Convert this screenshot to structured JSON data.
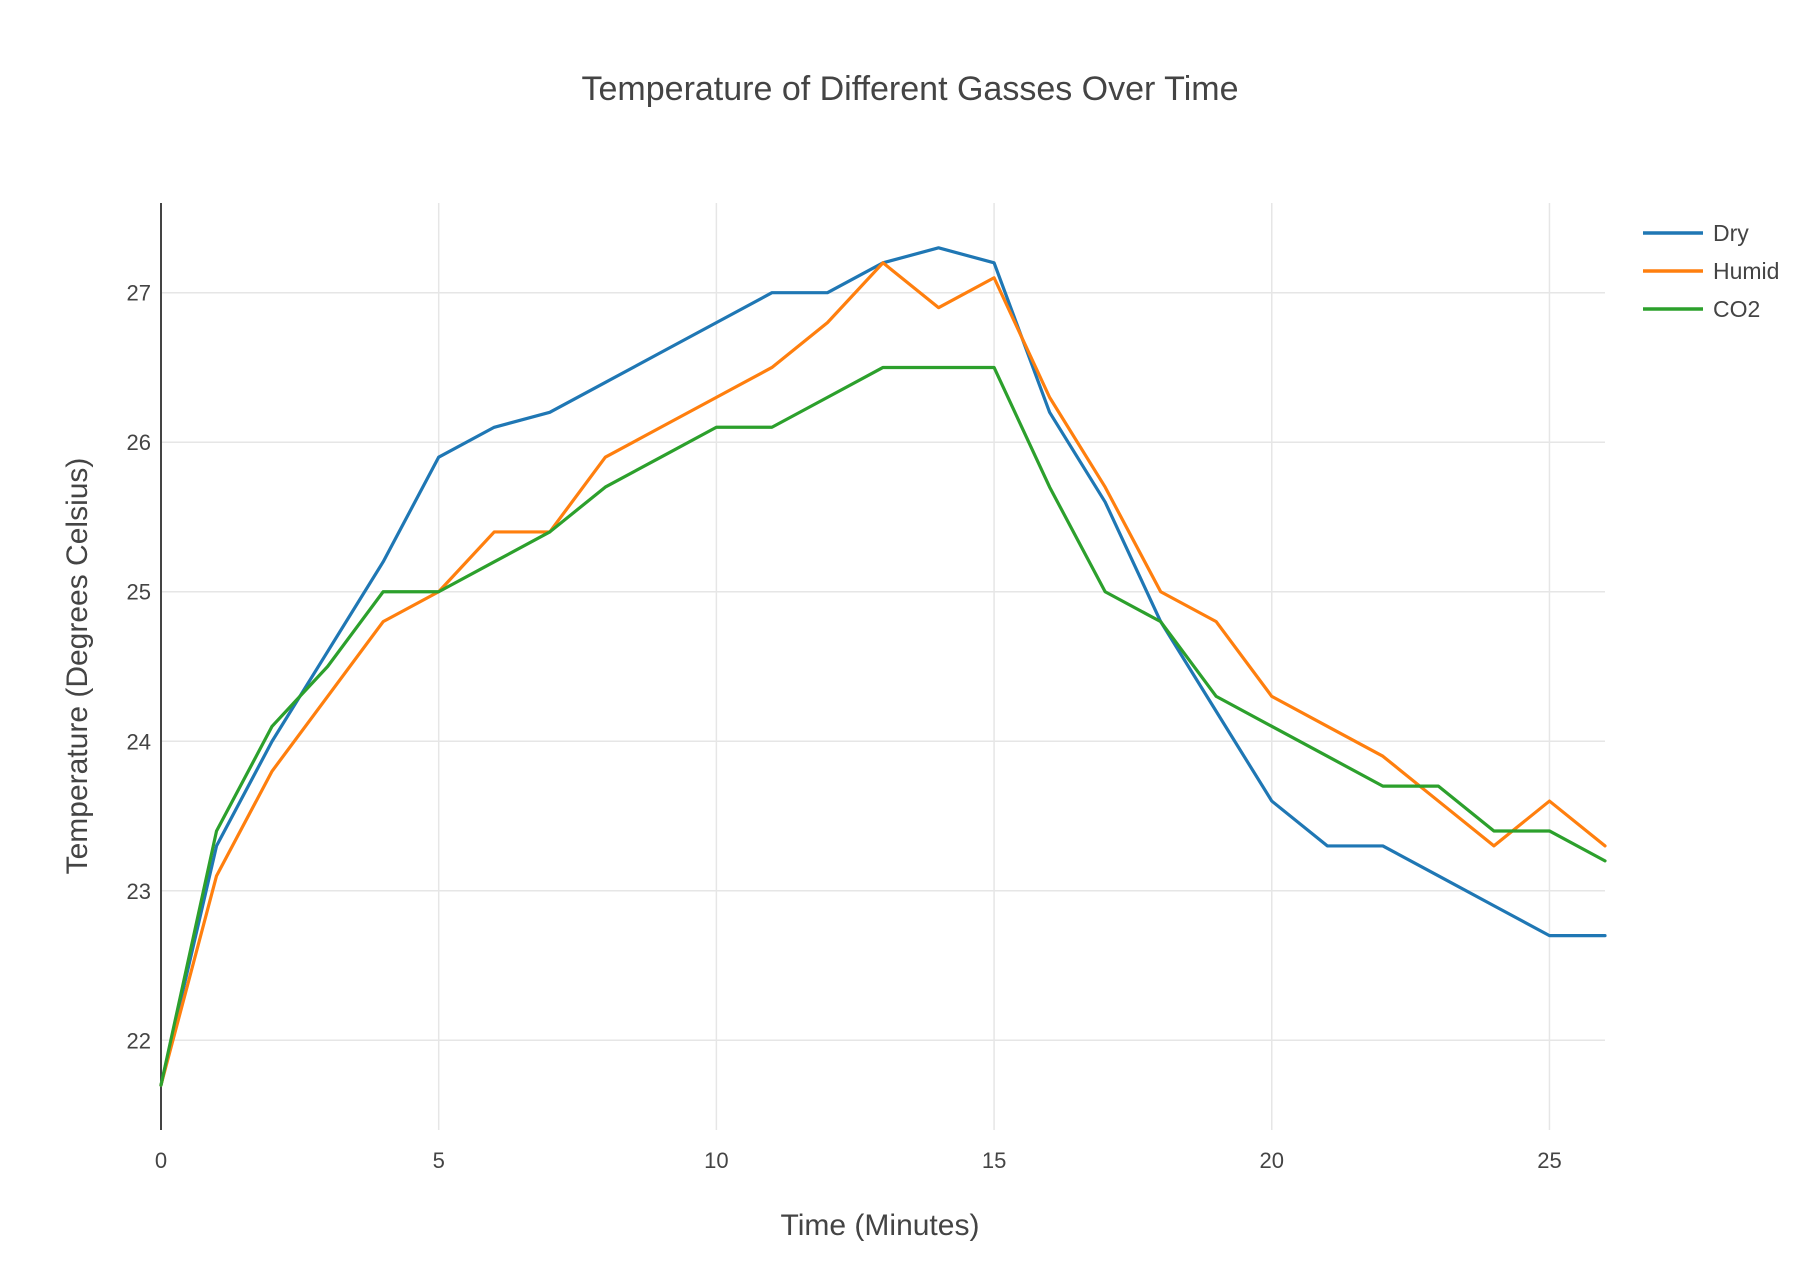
{
  "chart_data": {
    "type": "line",
    "title": "Temperature of Different Gasses Over Time",
    "xlabel": "Time (Minutes)",
    "ylabel": "Temperature (Degrees Celsius)",
    "xlim": [
      0,
      26
    ],
    "ylim": [
      21.4,
      27.6
    ],
    "xticks": [
      0,
      5,
      10,
      15,
      20,
      25
    ],
    "yticks": [
      22,
      23,
      24,
      25,
      26,
      27
    ],
    "grid": true,
    "legend_position": "top-right",
    "x": [
      0,
      1,
      2,
      3,
      4,
      5,
      6,
      7,
      8,
      9,
      10,
      11,
      12,
      13,
      14,
      15,
      16,
      17,
      18,
      19,
      20,
      21,
      22,
      23,
      24,
      25,
      26
    ],
    "series": [
      {
        "name": "Dry",
        "color": "#1f77b4",
        "values": [
          21.7,
          23.3,
          24.0,
          24.6,
          25.2,
          25.9,
          26.1,
          26.2,
          26.4,
          26.6,
          26.8,
          27.0,
          27.0,
          27.2,
          27.3,
          27.2,
          26.2,
          25.6,
          24.8,
          24.2,
          23.6,
          23.3,
          23.3,
          23.1,
          22.9,
          22.7,
          22.7
        ]
      },
      {
        "name": "Humid",
        "color": "#ff7f0e",
        "values": [
          21.7,
          23.1,
          23.8,
          24.3,
          24.8,
          25.0,
          25.4,
          25.4,
          25.9,
          26.1,
          26.3,
          26.5,
          26.8,
          27.2,
          26.9,
          27.1,
          26.3,
          25.7,
          25.0,
          24.8,
          24.3,
          24.1,
          23.9,
          23.6,
          23.3,
          23.6,
          23.3
        ]
      },
      {
        "name": "CO2",
        "color": "#2ca02c",
        "values": [
          21.7,
          23.4,
          24.1,
          24.5,
          25.0,
          25.0,
          25.2,
          25.4,
          25.7,
          25.9,
          26.1,
          26.1,
          26.3,
          26.5,
          26.5,
          26.5,
          25.7,
          25.0,
          24.8,
          24.3,
          24.1,
          23.9,
          23.7,
          23.7,
          23.4,
          23.4,
          23.2
        ]
      }
    ]
  }
}
